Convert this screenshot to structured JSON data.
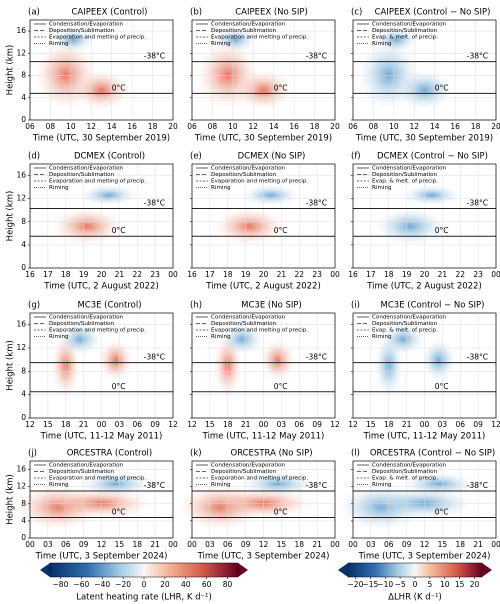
{
  "chart_data": [
    {
      "type": "contour",
      "label": "(a)",
      "title": "CAIPEEX (Control)",
      "xlabel": "Time (UTC, 30 September 2019)",
      "ylabel": "Height (km)",
      "x_tick_labels": [
        "06",
        "08",
        "10",
        "12",
        "14",
        "16",
        "18",
        "20"
      ],
      "ylim": [
        0,
        18
      ],
      "yticks": [
        0,
        4,
        8,
        12,
        16
      ],
      "legend": [
        "Condensation/Evaporation",
        "Deposition/Sublimation",
        "Evaporation and melting of precip.",
        "Riming"
      ],
      "isotherms": [
        {
          "label": "-38°C",
          "height": 10.5
        },
        {
          "label": "0°C",
          "height": 4.8
        }
      ]
    },
    {
      "type": "contour",
      "label": "(b)",
      "title": "CAIPEEX (No SIP)",
      "xlabel": "Time (UTC, 30 September 2019)",
      "x_tick_labels": [
        "06",
        "08",
        "10",
        "12",
        "14",
        "16",
        "18",
        "20"
      ],
      "ylim": [
        0,
        18
      ],
      "yticks": [
        0,
        4,
        8,
        12,
        16
      ],
      "legend": [
        "Condensation/Evaporation",
        "Deposition/Sublimation",
        "Evaporation and melting of precip.",
        "Riming"
      ],
      "isotherms": [
        {
          "label": "-38°C",
          "height": 10.5
        },
        {
          "label": "0°C",
          "height": 4.8
        }
      ]
    },
    {
      "type": "contour",
      "label": "(c)",
      "title": "CAIPEEX (Control − No SIP)",
      "xlabel": "Time (UTC, 30 September 2019)",
      "x_tick_labels": [
        "06",
        "08",
        "10",
        "12",
        "14",
        "16",
        "18",
        "20"
      ],
      "ylim": [
        0,
        18
      ],
      "yticks": [
        0,
        4,
        8,
        12,
        16
      ],
      "legend": [
        "Condensation/Evaporation",
        "Deposition/Sublimation",
        "Evap. & melt. of precip.",
        "Riming"
      ],
      "isotherms": [
        {
          "label": "-38°C",
          "height": 10.5
        },
        {
          "label": "0°C",
          "height": 4.8
        }
      ]
    },
    {
      "type": "contour",
      "label": "(d)",
      "title": "DCMEX (Control)",
      "xlabel": "Time (UTC, 2 August 2022)",
      "ylabel": "Height (km)",
      "x_tick_labels": [
        "16",
        "17",
        "18",
        "19",
        "20",
        "21",
        "22",
        "23",
        "00"
      ],
      "ylim": [
        0,
        18
      ],
      "yticks": [
        0,
        4,
        8,
        12,
        16
      ],
      "legend": [
        "Condensation/Evaporation",
        "Deposition/Sublimation",
        "Evaporation and melting of precip.",
        "Riming"
      ],
      "isotherms": [
        {
          "label": "-38°C",
          "height": 10.3
        },
        {
          "label": "0°C",
          "height": 5.5
        }
      ]
    },
    {
      "type": "contour",
      "label": "(e)",
      "title": "DCMEX (No SIP)",
      "xlabel": "Time (UTC, 2 August 2022)",
      "x_tick_labels": [
        "16",
        "17",
        "18",
        "19",
        "20",
        "21",
        "22",
        "23",
        "00"
      ],
      "ylim": [
        0,
        18
      ],
      "yticks": [
        0,
        4,
        8,
        12,
        16
      ],
      "legend": [
        "Condensation/Evaporation",
        "Deposition/Sublimation",
        "Evaporation and melting of precip.",
        "Riming"
      ],
      "isotherms": [
        {
          "label": "-38°C",
          "height": 10.3
        },
        {
          "label": "0°C",
          "height": 5.5
        }
      ]
    },
    {
      "type": "contour",
      "label": "(f)",
      "title": "DCMEX (Control − No SIP)",
      "xlabel": "Time (UTC, 2 August 2022)",
      "x_tick_labels": [
        "16",
        "17",
        "18",
        "19",
        "20",
        "21",
        "22",
        "23",
        "00"
      ],
      "ylim": [
        0,
        18
      ],
      "yticks": [
        0,
        4,
        8,
        12,
        16
      ],
      "legend": [
        "Condensation/Evaporation",
        "Deposition/Sublimation",
        "Evap. & melt. of precip.",
        "Riming"
      ],
      "isotherms": [
        {
          "label": "-38°C",
          "height": 10.3
        },
        {
          "label": "0°C",
          "height": 5.5
        }
      ]
    },
    {
      "type": "contour",
      "label": "(g)",
      "title": "MC3E (Control)",
      "xlabel": "Time (UTC, 11-12 May 2011)",
      "ylabel": "Height (km)",
      "x_tick_labels": [
        "12",
        "15",
        "18",
        "21",
        "00",
        "03",
        "06",
        "09",
        "12"
      ],
      "ylim": [
        0,
        18
      ],
      "yticks": [
        0,
        4,
        8,
        12,
        16
      ],
      "legend": [
        "Condensation/Evaporation",
        "Deposition/Sublimation",
        "Evaporation and melting of precip.",
        "Riming"
      ],
      "isotherms": [
        {
          "label": "-38°C",
          "height": 9.5
        },
        {
          "label": "0°C",
          "height": 4.5
        }
      ]
    },
    {
      "type": "contour",
      "label": "(h)",
      "title": "MC3E (No SIP)",
      "xlabel": "Time (UTC, 11-12 May 2011)",
      "x_tick_labels": [
        "12",
        "15",
        "18",
        "21",
        "00",
        "03",
        "06",
        "09",
        "12"
      ],
      "ylim": [
        0,
        18
      ],
      "yticks": [
        0,
        4,
        8,
        12,
        16
      ],
      "legend": [
        "Condensation/Evaporation",
        "Deposition/Sublimation",
        "Evaporation and melting of precip.",
        "Riming"
      ],
      "isotherms": [
        {
          "label": "-38°C",
          "height": 9.5
        },
        {
          "label": "0°C",
          "height": 4.5
        }
      ]
    },
    {
      "type": "contour",
      "label": "(i)",
      "title": "MC3E (Control − No SIP)",
      "xlabel": "Time (UTC, 11-12 May 2011)",
      "x_tick_labels": [
        "12",
        "15",
        "18",
        "21",
        "00",
        "03",
        "06",
        "09",
        "12"
      ],
      "ylim": [
        0,
        18
      ],
      "yticks": [
        0,
        4,
        8,
        12,
        16
      ],
      "legend": [
        "Condensation/Evaporation",
        "Deposition/Sublimation",
        "Evap. & melt. of precip.",
        "Riming"
      ],
      "isotherms": [
        {
          "label": "-38°C",
          "height": 9.5
        },
        {
          "label": "0°C",
          "height": 4.5
        }
      ]
    },
    {
      "type": "contour",
      "label": "(j)",
      "title": "ORCESTRA (Control)",
      "xlabel": "Time (UTC, 3 September 2024)",
      "ylabel": "Height (km)",
      "x_tick_labels": [
        "00",
        "03",
        "06",
        "09",
        "12",
        "15",
        "18",
        "21",
        "00"
      ],
      "ylim": [
        0,
        18
      ],
      "yticks": [
        0,
        4,
        8,
        12,
        16
      ],
      "legend": [
        "Condensation/Evaporation",
        "Deposition/Sublimation",
        "Evaporation and melting of precip.",
        "Riming"
      ],
      "isotherms": [
        {
          "label": "-38°C",
          "height": 11
        },
        {
          "label": "0°C",
          "height": 4.8
        }
      ]
    },
    {
      "type": "contour",
      "label": "(k)",
      "title": "ORCESTRA (No SIP)",
      "xlabel": "Time (UTC, 3 September 2024)",
      "x_tick_labels": [
        "00",
        "03",
        "06",
        "09",
        "12",
        "15",
        "18",
        "21",
        "00"
      ],
      "ylim": [
        0,
        18
      ],
      "yticks": [
        0,
        4,
        8,
        12,
        16
      ],
      "legend": [
        "Condensation/Evaporation",
        "Deposition/Sublimation",
        "Evaporation and melting of precip.",
        "Riming"
      ],
      "isotherms": [
        {
          "label": "-38°C",
          "height": 11
        },
        {
          "label": "0°C",
          "height": 4.8
        }
      ]
    },
    {
      "type": "contour",
      "label": "(l)",
      "title": "ORCESTRA (Control − No SIP)",
      "xlabel": "Time (UTC, 3 September 2024)",
      "x_tick_labels": [
        "00",
        "03",
        "06",
        "09",
        "12",
        "15",
        "18",
        "21",
        "00"
      ],
      "ylim": [
        0,
        18
      ],
      "yticks": [
        0,
        4,
        8,
        12,
        16
      ],
      "legend": [
        "Condensation/Evaporation",
        "Deposition/Sublimation",
        "Evap. & melt. of precip.",
        "Riming"
      ],
      "isotherms": [
        {
          "label": "-38°C",
          "height": 11
        },
        {
          "label": "0°C",
          "height": 4.8
        }
      ]
    },
    {
      "type": "colorbar",
      "label": "Latent heating rate (LHR, K d⁻¹)",
      "xlim": [
        -90,
        90
      ],
      "xticks": [
        {
          "value": -80,
          "label": "−80"
        },
        {
          "value": -60,
          "label": "−60"
        },
        {
          "value": -40,
          "label": "−40"
        },
        {
          "value": -20,
          "label": "−20"
        },
        0,
        20,
        40,
        60,
        80
      ]
    },
    {
      "type": "colorbar",
      "label": "ΔLHR (K d⁻¹)",
      "xlim": [
        -22.5,
        22.5
      ],
      "xticks": [
        {
          "value": -20,
          "label": "−20"
        },
        {
          "value": -15,
          "label": "−15"
        },
        {
          "value": -10,
          "label": "−10"
        },
        {
          "value": -5,
          "label": "−5"
        },
        0,
        5,
        10,
        15,
        20
      ]
    }
  ]
}
